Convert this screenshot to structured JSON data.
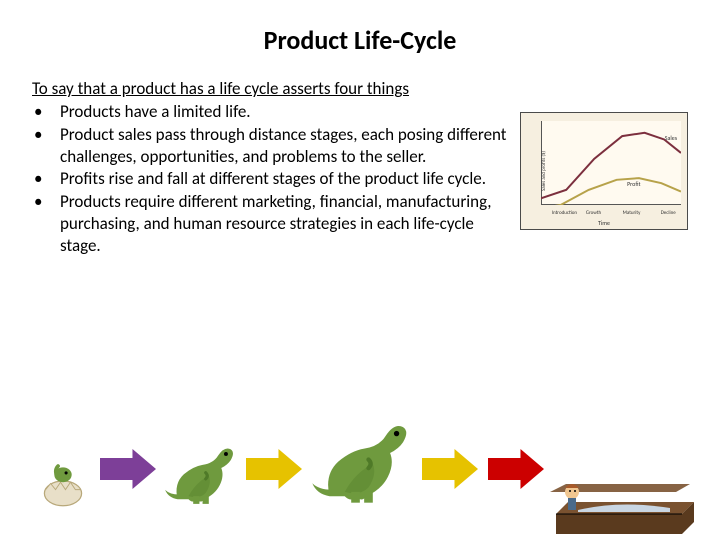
{
  "title": "Product Life-Cycle",
  "intro": "To say that a product has a life cycle asserts four things",
  "bullets": [
    "Products have a limited life.",
    "Product sales pass through distance stages, each posing different challenges, opportunities, and problems to the seller.",
    "Profits rise and fall at different stages of the product life cycle.",
    "Products require different marketing, financial, manufacturing, purchasing, and human resource strategies in each life-cycle stage."
  ],
  "plc_chart": {
    "type": "line",
    "background_color": "#f6efe0",
    "plot_background": "#fffaf0",
    "border_color": "#4a4a4a",
    "y_axis_label": "Sales and profits ($)",
    "x_axis_label": "Time",
    "stages": [
      "Introduction",
      "Growth",
      "Maturity",
      "Decline"
    ],
    "stage_positions_pct": [
      8,
      33,
      60,
      88
    ],
    "series": [
      {
        "name": "Sales",
        "color": "#7c2f3e",
        "stroke_width": 2,
        "label_pos": {
          "right_pct": 6,
          "top_pct": 18
        },
        "points": [
          {
            "x": 0,
            "y": 8
          },
          {
            "x": 18,
            "y": 18
          },
          {
            "x": 38,
            "y": 55
          },
          {
            "x": 58,
            "y": 82
          },
          {
            "x": 74,
            "y": 86
          },
          {
            "x": 88,
            "y": 78
          },
          {
            "x": 100,
            "y": 62
          }
        ]
      },
      {
        "name": "Profit",
        "color": "#b7a24a",
        "stroke_width": 2,
        "label_pos": {
          "right_pct": 28,
          "top_pct": 58
        },
        "points": [
          {
            "x": 0,
            "y": -4
          },
          {
            "x": 14,
            "y": 0
          },
          {
            "x": 34,
            "y": 18
          },
          {
            "x": 54,
            "y": 30
          },
          {
            "x": 70,
            "y": 32
          },
          {
            "x": 86,
            "y": 26
          },
          {
            "x": 100,
            "y": 16
          }
        ]
      }
    ]
  },
  "arrows": [
    {
      "color": "#7d3f98"
    },
    {
      "color": "#e6c200"
    },
    {
      "color": "#e6c200"
    },
    {
      "color": "#cc0000"
    }
  ],
  "arrow_shape": {
    "width": 56,
    "height": 40,
    "shaft_height_ratio": 0.55,
    "head_width_ratio": 0.42
  },
  "dinosaurs": {
    "body_color": "#6f9a3e",
    "body_color_dark": "#4f7a28",
    "egg_color": "#e8dfc8",
    "egg_crack_color": "#b8a87a",
    "sizes": {
      "hatch": 62,
      "juvenile": 78,
      "adult": 108
    }
  },
  "coffin": {
    "body_color": "#5a3a1e",
    "rim_color": "#7a5230",
    "person_skin": "#f0c690",
    "person_hair": "#a85a2a",
    "sheet_color": "#c9d6e3"
  }
}
